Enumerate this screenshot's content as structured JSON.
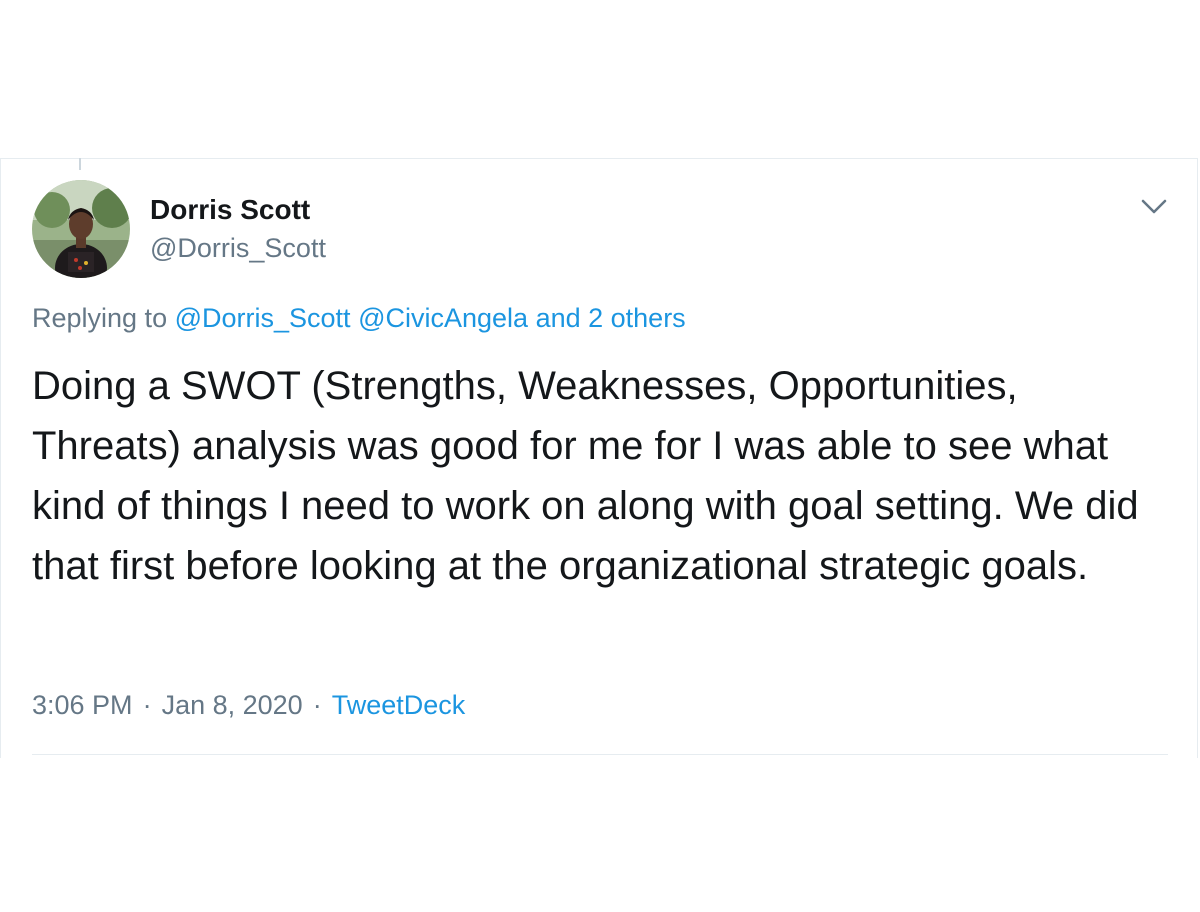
{
  "tweet": {
    "author_name": "Dorris Scott",
    "author_handle": "@Dorris_Scott",
    "avatar_icon": "user-photo-avatar",
    "menu_icon": "chevron-down-icon",
    "replying_prefix": "Replying to",
    "reply_mentions": [
      "@Dorris_Scott",
      "@CivicAngela"
    ],
    "reply_others": "and 2 others",
    "text": "Doing a SWOT (Strengths, Weaknesses, Opportunities, Threats) analysis was good for me for I was able to see what kind of things I need to work on along with goal setting. We did that first before looking at the organizational strategic goals.",
    "time": "3:06 PM",
    "separator": "·",
    "date": "Jan 8, 2020",
    "source": "TweetDeck"
  },
  "colors": {
    "text_primary": "#14171a",
    "text_secondary": "#657786",
    "link": "#1b95e0",
    "border": "#e6ecf0"
  }
}
